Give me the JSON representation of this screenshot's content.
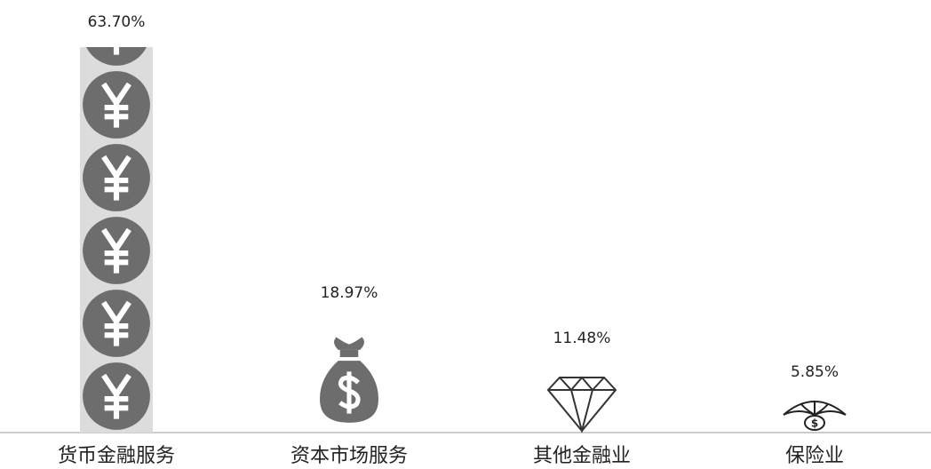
{
  "chart_data": {
    "type": "bar",
    "categories": [
      "货币金融服务",
      "资本市场服务",
      "其他金融业",
      "保险业"
    ],
    "values": [
      63.7,
      18.97,
      11.48,
      5.85
    ],
    "value_labels": [
      "63.70%",
      "18.97%",
      "11.48%",
      "5.85%"
    ],
    "color": "#6d6d6d"
  }
}
